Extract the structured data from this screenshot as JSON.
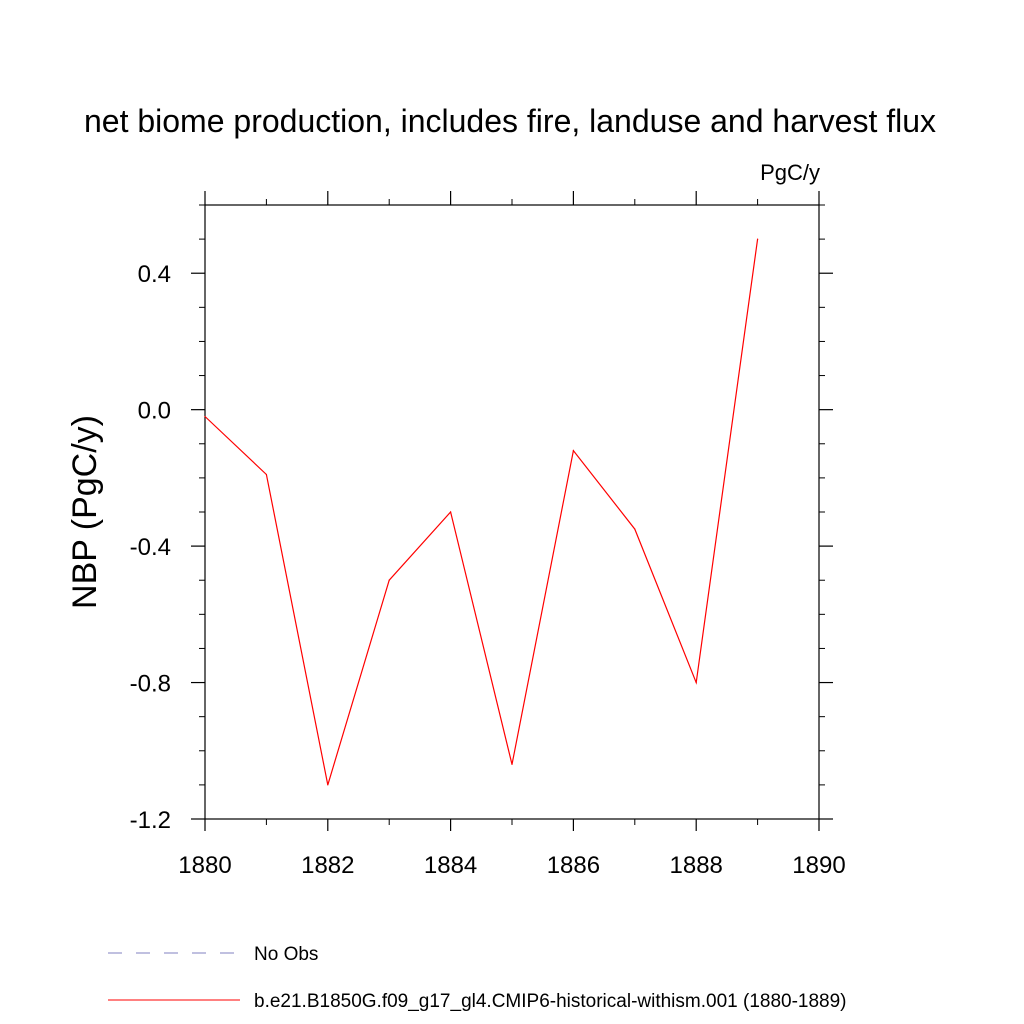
{
  "chart_data": {
    "type": "line",
    "title": "net biome production, includes fire, landuse and harvest flux",
    "units": "PgC/y",
    "ylabel": "NBP  (PgC/y)",
    "xlabel": "",
    "xlim": [
      1880,
      1890
    ],
    "ylim": [
      -1.2,
      0.6
    ],
    "xticks": [
      "1880",
      "1882",
      "1884",
      "1886",
      "1888",
      "1890"
    ],
    "yticks": [
      "0.4",
      "0.0",
      "-0.4",
      "-0.8",
      "-1.2"
    ],
    "x": [
      1880,
      1881,
      1882,
      1883,
      1884,
      1885,
      1886,
      1887,
      1888,
      1889
    ],
    "series": [
      {
        "name": "b.e21.B1850G.f09_g17_gl4.CMIP6-historical-withism.001 (1880-1889)",
        "color": "#ff0000",
        "values": [
          -0.02,
          -0.19,
          -1.1,
          -0.5,
          -0.3,
          -1.04,
          -0.12,
          -0.35,
          -0.8,
          0.5
        ]
      }
    ],
    "legend": [
      {
        "label": "No Obs",
        "style": "dashed",
        "color": "#8080c0"
      },
      {
        "label": "b.e21.B1850G.f09_g17_gl4.CMIP6-historical-withism.001 (1880-1889)",
        "style": "solid",
        "color": "#ff0000"
      }
    ],
    "legend_position": "bottom",
    "grid": false
  }
}
